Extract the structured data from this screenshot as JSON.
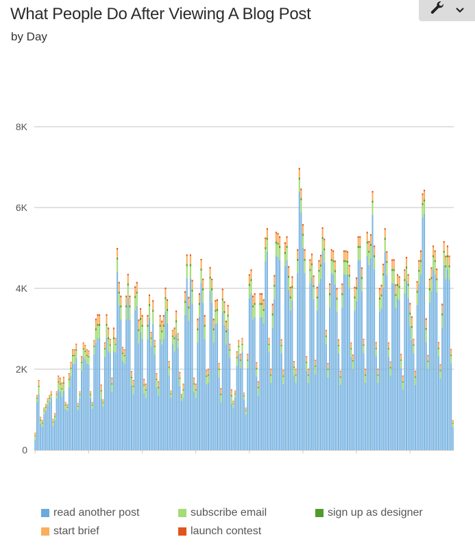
{
  "header": {
    "title": "What People Do After Viewing A Blog Post",
    "subtitle": "by Day",
    "tools_icon": "wrench-icon",
    "dropdown_icon": "chevron-down-icon"
  },
  "chart_data": {
    "type": "bar",
    "stacked": true,
    "title": "What People Do After Viewing A Blog Post",
    "subtitle": "by Day",
    "xlabel": "",
    "ylabel": "",
    "ylim": [
      0,
      8000
    ],
    "y_ticks": [
      "0",
      "2K",
      "4K",
      "6K",
      "8K"
    ],
    "y_tick_values": [
      0,
      2000,
      4000,
      6000,
      8000
    ],
    "grid": true,
    "legend_position": "bottom",
    "series": [
      {
        "name": "read another post",
        "color": "#7db6e2",
        "values": [
          260,
          1190,
          1380,
          650,
          570,
          880,
          970,
          1110,
          1190,
          1280,
          600,
          740,
          1280,
          1490,
          1440,
          1320,
          1460,
          1020,
          970,
          1550,
          1830,
          2140,
          2140,
          2280,
          990,
          1280,
          1970,
          2310,
          2250,
          2140,
          2110,
          1280,
          1020,
          2370,
          2660,
          2770,
          2770,
          1270,
          1080,
          2310,
          2770,
          2440,
          2400,
          1440,
          2440,
          2420,
          4410,
          3570,
          3230,
          2200,
          2140,
          3230,
          3770,
          3230,
          1600,
          1380,
          3460,
          3570,
          2640,
          2920,
          2750,
          1410,
          1290,
          2750,
          3260,
          2570,
          3120,
          2370,
          1550,
          1350,
          2750,
          2610,
          2750,
          3430,
          3140,
          1850,
          1300,
          2620,
          2440,
          2860,
          2540,
          1580,
          1220,
          1290,
          3340,
          4250,
          3200,
          4250,
          3620,
          1440,
          1290,
          2660,
          3290,
          4140,
          3650,
          2750,
          1630,
          1660,
          3940,
          3650,
          2660,
          3120,
          3140,
          1800,
          1180,
          3400,
          3090,
          2610,
          3000,
          2280,
          1150,
          1050,
          1300,
          2090,
          2370,
          2030,
          2420,
          1250,
          880,
          2030,
          3760,
          3880,
          3230,
          3290,
          1820,
          1350,
          3290,
          3290,
          3140,
          4670,
          4900,
          2420,
          1660,
          3030,
          3740,
          4810,
          4780,
          4700,
          2390,
          1630,
          4550,
          4700,
          3960,
          3450,
          3710,
          1850,
          1660,
          4380,
          6390,
          5880,
          5000,
          4380,
          1970,
          1660,
          4130,
          4270,
          3730,
          1880,
          3450,
          4110,
          4240,
          4920,
          4640,
          2620,
          1800,
          3530,
          4380,
          4350,
          4100,
          3420,
          2390,
          1610,
          3530,
          4350,
          4350,
          4330,
          3990,
          2310,
          2010,
          3450,
          3680,
          4700,
          4700,
          3930,
          2400,
          1660,
          4810,
          4580,
          4750,
          5820,
          4470,
          2320,
          1660,
          3420,
          3500,
          4020,
          4900,
          4330,
          2310,
          1840,
          4130,
          4130,
          3510,
          3760,
          3710,
          2030,
          1490,
          3880,
          4190,
          3760,
          3050,
          2720,
          2400,
          1610,
          3590,
          4110,
          4350,
          5760,
          5850,
          2670,
          2000,
          3650,
          3930,
          4470,
          4350,
          3900,
          2320,
          1770,
          3030,
          4580,
          4220,
          4470,
          4220,
          2150,
          570
        ]
      },
      {
        "name": "subscribe email",
        "color": "#a4dc76",
        "values": [
          80,
          80,
          180,
          80,
          80,
          80,
          80,
          80,
          80,
          80,
          80,
          80,
          80,
          180,
          180,
          180,
          180,
          80,
          80,
          180,
          180,
          180,
          180,
          180,
          80,
          80,
          180,
          180,
          180,
          180,
          180,
          80,
          80,
          180,
          300,
          300,
          300,
          180,
          80,
          180,
          300,
          300,
          180,
          180,
          300,
          180,
          300,
          300,
          300,
          180,
          180,
          300,
          300,
          300,
          180,
          180,
          300,
          300,
          300,
          300,
          300,
          180,
          180,
          300,
          300,
          180,
          300,
          180,
          180,
          180,
          300,
          300,
          300,
          300,
          300,
          180,
          80,
          180,
          300,
          300,
          180,
          180,
          80,
          180,
          300,
          300,
          300,
          300,
          300,
          180,
          180,
          300,
          300,
          300,
          300,
          300,
          180,
          180,
          300,
          300,
          300,
          300,
          300,
          180,
          180,
          300,
          300,
          300,
          300,
          180,
          180,
          80,
          80,
          180,
          180,
          180,
          180,
          80,
          80,
          180,
          300,
          300,
          300,
          300,
          180,
          180,
          300,
          300,
          300,
          300,
          300,
          180,
          180,
          300,
          300,
          300,
          300,
          300,
          180,
          180,
          300,
          300,
          300,
          300,
          300,
          180,
          180,
          300,
          300,
          300,
          300,
          300,
          180,
          180,
          300,
          300,
          300,
          180,
          300,
          300,
          300,
          300,
          300,
          180,
          180,
          300,
          300,
          300,
          300,
          300,
          180,
          180,
          300,
          300,
          300,
          300,
          300,
          180,
          180,
          300,
          300,
          300,
          300,
          300,
          180,
          180,
          300,
          300,
          300,
          300,
          300,
          180,
          180,
          300,
          300,
          300,
          300,
          300,
          180,
          180,
          300,
          300,
          300,
          300,
          300,
          180,
          180,
          300,
          300,
          300,
          300,
          300,
          180,
          180,
          300,
          300,
          300,
          300,
          300,
          300,
          180,
          300,
          300,
          300,
          300,
          300,
          180,
          180,
          300,
          300,
          300,
          300,
          300,
          180,
          80
        ]
      },
      {
        "name": "sign up as designer",
        "color": "#4f9b2c",
        "values": [
          20,
          20,
          30,
          20,
          20,
          20,
          20,
          20,
          20,
          20,
          20,
          20,
          20,
          30,
          30,
          30,
          30,
          20,
          20,
          30,
          30,
          30,
          30,
          30,
          20,
          20,
          30,
          30,
          30,
          30,
          30,
          20,
          20,
          30,
          50,
          50,
          50,
          30,
          20,
          30,
          50,
          50,
          30,
          30,
          50,
          30,
          50,
          50,
          50,
          30,
          30,
          50,
          50,
          50,
          30,
          30,
          50,
          50,
          50,
          50,
          50,
          30,
          30,
          50,
          50,
          30,
          50,
          30,
          30,
          30,
          50,
          50,
          50,
          50,
          50,
          30,
          20,
          30,
          50,
          50,
          30,
          30,
          20,
          30,
          50,
          50,
          50,
          50,
          50,
          30,
          30,
          50,
          50,
          50,
          50,
          50,
          30,
          30,
          50,
          50,
          50,
          50,
          50,
          30,
          30,
          50,
          50,
          50,
          50,
          30,
          30,
          20,
          20,
          30,
          30,
          30,
          30,
          20,
          20,
          30,
          50,
          50,
          50,
          50,
          30,
          30,
          50,
          50,
          50,
          50,
          50,
          30,
          30,
          50,
          50,
          50,
          50,
          50,
          30,
          30,
          50,
          50,
          50,
          50,
          50,
          30,
          30,
          50,
          50,
          50,
          50,
          50,
          30,
          30,
          50,
          50,
          50,
          30,
          50,
          50,
          50,
          50,
          50,
          30,
          30,
          50,
          50,
          50,
          50,
          50,
          30,
          30,
          50,
          50,
          50,
          50,
          50,
          30,
          30,
          50,
          50,
          50,
          50,
          50,
          30,
          30,
          50,
          50,
          50,
          50,
          50,
          30,
          30,
          50,
          50,
          50,
          50,
          50,
          30,
          30,
          50,
          50,
          50,
          50,
          50,
          30,
          30,
          50,
          50,
          50,
          50,
          50,
          30,
          30,
          50,
          50,
          50,
          50,
          50,
          50,
          30,
          50,
          50,
          50,
          50,
          50,
          30,
          30,
          50,
          50,
          50,
          50,
          50,
          30,
          20
        ]
      },
      {
        "name": "start brief",
        "color": "#fbae5c",
        "values": [
          60,
          60,
          120,
          60,
          60,
          60,
          60,
          60,
          60,
          60,
          60,
          60,
          60,
          120,
          120,
          120,
          120,
          60,
          60,
          120,
          120,
          120,
          120,
          120,
          60,
          60,
          120,
          120,
          120,
          120,
          120,
          60,
          60,
          120,
          200,
          200,
          200,
          120,
          60,
          120,
          200,
          200,
          120,
          120,
          200,
          120,
          200,
          200,
          200,
          120,
          120,
          200,
          200,
          200,
          120,
          120,
          200,
          200,
          200,
          200,
          200,
          120,
          120,
          200,
          200,
          120,
          200,
          120,
          120,
          120,
          200,
          200,
          200,
          200,
          200,
          120,
          60,
          120,
          200,
          200,
          120,
          120,
          60,
          120,
          200,
          200,
          200,
          200,
          200,
          120,
          120,
          200,
          200,
          200,
          200,
          200,
          120,
          120,
          200,
          200,
          200,
          200,
          200,
          120,
          120,
          200,
          200,
          200,
          200,
          120,
          120,
          60,
          60,
          120,
          120,
          120,
          120,
          60,
          60,
          120,
          200,
          200,
          200,
          200,
          120,
          120,
          200,
          200,
          200,
          200,
          200,
          120,
          120,
          200,
          200,
          200,
          200,
          200,
          120,
          120,
          200,
          200,
          200,
          200,
          200,
          120,
          120,
          200,
          200,
          200,
          200,
          200,
          120,
          120,
          200,
          200,
          200,
          120,
          200,
          200,
          200,
          200,
          200,
          120,
          120,
          200,
          200,
          200,
          200,
          200,
          120,
          120,
          200,
          200,
          200,
          200,
          200,
          120,
          120,
          200,
          200,
          200,
          200,
          200,
          120,
          120,
          200,
          200,
          200,
          200,
          200,
          120,
          120,
          200,
          200,
          200,
          200,
          200,
          120,
          120,
          200,
          200,
          200,
          200,
          200,
          120,
          120,
          200,
          200,
          200,
          200,
          200,
          120,
          120,
          200,
          200,
          200,
          200,
          200,
          200,
          120,
          200,
          200,
          200,
          200,
          200,
          120,
          120,
          200,
          200,
          200,
          200,
          200,
          120,
          60
        ]
      },
      {
        "name": "launch contest",
        "color": "#e0551b",
        "values": [
          10,
          10,
          20,
          10,
          10,
          10,
          10,
          10,
          10,
          10,
          10,
          10,
          10,
          20,
          20,
          20,
          20,
          10,
          10,
          20,
          20,
          20,
          20,
          20,
          10,
          10,
          20,
          20,
          20,
          20,
          20,
          10,
          10,
          20,
          40,
          40,
          40,
          20,
          10,
          20,
          40,
          40,
          20,
          20,
          40,
          20,
          40,
          40,
          40,
          20,
          20,
          40,
          40,
          40,
          20,
          20,
          40,
          40,
          40,
          40,
          40,
          20,
          20,
          40,
          40,
          20,
          40,
          20,
          20,
          20,
          40,
          40,
          40,
          40,
          40,
          20,
          10,
          20,
          40,
          40,
          20,
          20,
          10,
          20,
          40,
          40,
          40,
          40,
          40,
          20,
          20,
          40,
          40,
          40,
          40,
          40,
          20,
          20,
          40,
          40,
          40,
          40,
          40,
          20,
          20,
          40,
          40,
          40,
          40,
          20,
          20,
          10,
          10,
          20,
          20,
          20,
          20,
          10,
          10,
          20,
          40,
          40,
          40,
          40,
          20,
          20,
          40,
          40,
          40,
          40,
          40,
          20,
          20,
          40,
          40,
          40,
          40,
          40,
          20,
          20,
          40,
          40,
          40,
          40,
          40,
          20,
          20,
          40,
          40,
          40,
          40,
          40,
          20,
          20,
          40,
          40,
          40,
          20,
          40,
          40,
          40,
          40,
          40,
          20,
          20,
          40,
          40,
          40,
          40,
          40,
          20,
          20,
          40,
          40,
          40,
          40,
          40,
          20,
          20,
          40,
          40,
          40,
          40,
          40,
          20,
          20,
          40,
          40,
          40,
          40,
          40,
          20,
          20,
          40,
          40,
          40,
          40,
          40,
          20,
          20,
          40,
          40,
          40,
          40,
          40,
          20,
          20,
          40,
          40,
          40,
          40,
          40,
          20,
          20,
          40,
          40,
          40,
          40,
          40,
          40,
          20,
          40,
          40,
          40,
          40,
          40,
          20,
          20,
          40,
          40,
          40,
          40,
          40,
          20,
          10
        ]
      }
    ]
  }
}
